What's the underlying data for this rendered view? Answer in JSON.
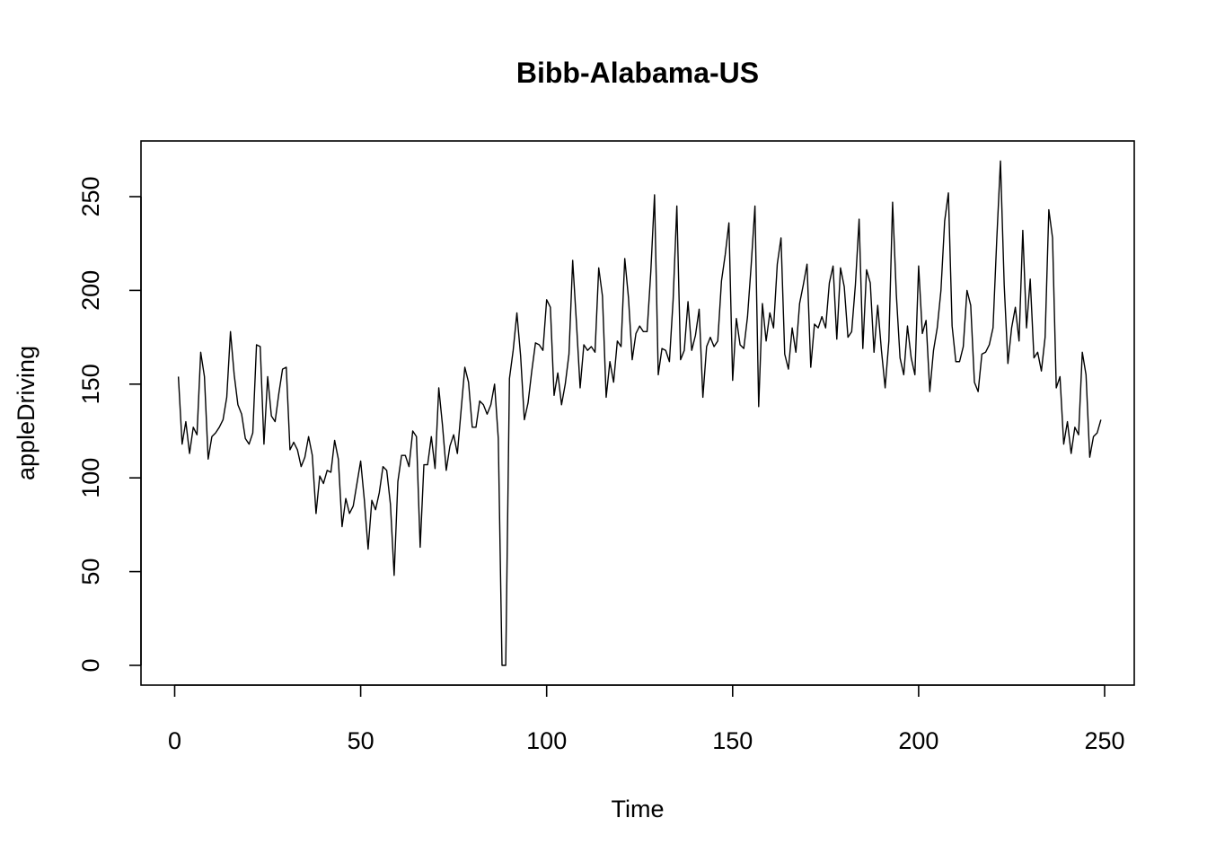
{
  "chart_data": {
    "type": "line",
    "title": "Bibb-Alabama-US",
    "xlabel": "Time",
    "ylabel": "appleDriving",
    "xlim": [
      1,
      248
    ],
    "ylim": [
      0,
      270
    ],
    "x_ticks": [
      0,
      50,
      100,
      150,
      200,
      250
    ],
    "y_ticks": [
      0,
      50,
      100,
      150,
      200,
      250
    ],
    "x_tick_labels": [
      "0",
      "50",
      "100",
      "150",
      "200",
      "250"
    ],
    "y_tick_labels": [
      "0",
      "50",
      "100",
      "150",
      "200",
      "250"
    ],
    "grid": false,
    "legend": "none",
    "line_color": "#000000",
    "series": [
      {
        "x_start": 1,
        "values": [
          154,
          118,
          130,
          113,
          127,
          123,
          167,
          154,
          110,
          122,
          124,
          127,
          131,
          143,
          178,
          155,
          139,
          134,
          121,
          118,
          124,
          171,
          170,
          118,
          154,
          133,
          130,
          145,
          158,
          159,
          115,
          119,
          115,
          106,
          111,
          122,
          112,
          81,
          101,
          97,
          104,
          103,
          120,
          110,
          74,
          89,
          81,
          85,
          97,
          109,
          88,
          62,
          88,
          83,
          92,
          106,
          104,
          86,
          48,
          98,
          112,
          112,
          106,
          125,
          122,
          63,
          107,
          107,
          122,
          105,
          148,
          128,
          104,
          117,
          123,
          113,
          136,
          159,
          151,
          127,
          127,
          141,
          139,
          134,
          139,
          150,
          121,
          0,
          0,
          153,
          168,
          188,
          165,
          131,
          140,
          157,
          172,
          171,
          168,
          195,
          191,
          144,
          156,
          139,
          150,
          166,
          216,
          183,
          148,
          171,
          168,
          170,
          167,
          212,
          197,
          143,
          162,
          151,
          173,
          170,
          217,
          196,
          163,
          177,
          181,
          178,
          178,
          210,
          251,
          155,
          169,
          168,
          162,
          195,
          245,
          163,
          168,
          194,
          168,
          176,
          190,
          143,
          170,
          175,
          170,
          173,
          205,
          219,
          236,
          152,
          185,
          171,
          169,
          186,
          214,
          245,
          138,
          193,
          173,
          188,
          180,
          214,
          228,
          166,
          158,
          180,
          167,
          193,
          203,
          214,
          159,
          182,
          180,
          186,
          180,
          204,
          213,
          174,
          212,
          202,
          175,
          178,
          203,
          238,
          169,
          211,
          204,
          167,
          192,
          168,
          148,
          173,
          247,
          198,
          164,
          155,
          181,
          164,
          155,
          213,
          177,
          184,
          146,
          168,
          180,
          200,
          237,
          252,
          181,
          162,
          162,
          170,
          200,
          192,
          151,
          146,
          166,
          167,
          171,
          180,
          227,
          269,
          203,
          161,
          180,
          191,
          173,
          232,
          180,
          206,
          164,
          167,
          157,
          175,
          243,
          228,
          148,
          154,
          118,
          130,
          113,
          127,
          123,
          167,
          155,
          111,
          122,
          124,
          131
        ]
      }
    ]
  }
}
